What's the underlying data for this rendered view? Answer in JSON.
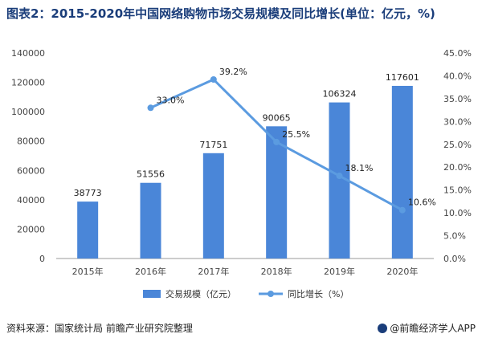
{
  "title": "图表2：2015-2020年中国网络购物市场交易规模及同比增长(单位：亿元，%)",
  "source": "资料来源：国家统计局 前瞻产业研究院整理",
  "brand": "@前瞻经济学人APP",
  "colors": {
    "bar": "#4a86d8",
    "line": "#5b9be0",
    "title": "#1a3d7a"
  },
  "chart_data": {
    "type": "bar",
    "categories": [
      "2015年",
      "2016年",
      "2017年",
      "2018年",
      "2019年",
      "2020年"
    ],
    "series": [
      {
        "name": "交易规模（亿元）",
        "type": "bar",
        "axis": "left",
        "values": [
          38773,
          51556,
          71751,
          90065,
          106324,
          117601
        ],
        "labels": [
          "38773",
          "51556",
          "71751",
          "90065",
          "106324",
          "117601"
        ]
      },
      {
        "name": "同比增长（%）",
        "type": "line",
        "axis": "right",
        "values": [
          null,
          33.0,
          39.2,
          25.5,
          18.1,
          10.6
        ],
        "labels": [
          "",
          "33.0%",
          "39.2%",
          "25.5%",
          "18.1%",
          "10.6%"
        ]
      }
    ],
    "ylim": [
      0,
      140000
    ],
    "y_ticks": [
      "0",
      "20000",
      "40000",
      "60000",
      "80000",
      "100000",
      "120000",
      "140000"
    ],
    "y2lim": [
      0,
      45
    ],
    "y2_ticks": [
      "0.0%",
      "5.0%",
      "10.0%",
      "15.0%",
      "20.0%",
      "25.0%",
      "30.0%",
      "35.0%",
      "40.0%",
      "45.0%"
    ],
    "legend_position": "bottom",
    "grid": false
  }
}
